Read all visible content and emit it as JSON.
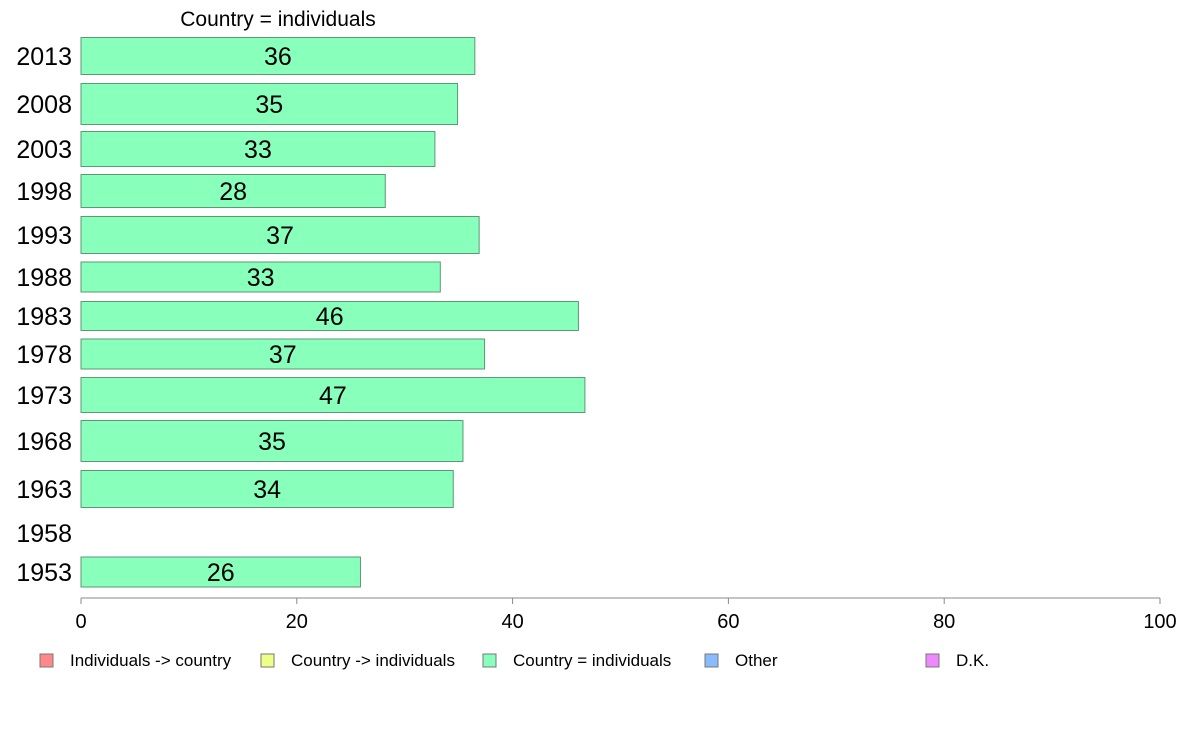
{
  "chart_data": {
    "type": "bar",
    "orientation": "horizontal",
    "title": "Country = individuals",
    "categories": [
      "2013",
      "2008",
      "2003",
      "1998",
      "1993",
      "1988",
      "1983",
      "1978",
      "1973",
      "1968",
      "1963",
      "1958",
      "1953"
    ],
    "values": [
      36.5,
      34.9,
      32.8,
      28.2,
      36.9,
      33.3,
      46.1,
      37.4,
      46.7,
      35.4,
      34.5,
      null,
      25.9
    ],
    "data_labels": [
      "36",
      "35",
      "33",
      "28",
      "37",
      "33",
      "46",
      "37",
      "47",
      "35",
      "34",
      "",
      "26"
    ],
    "xlim": [
      0,
      100
    ],
    "xticks": [
      "0",
      "20",
      "40",
      "60",
      "80",
      "100"
    ],
    "bar_color": "#88ffbb",
    "bar_stroke": "#5a9a74",
    "grid": false,
    "legend_position": "bottom",
    "legend": [
      {
        "label": "Individuals -> country",
        "color": "#ff8888"
      },
      {
        "label": "Country -> individuals",
        "color": "#eeff88"
      },
      {
        "label": "Country = individuals",
        "color": "#88ffbb"
      },
      {
        "label": "Other",
        "color": "#88bbff"
      },
      {
        "label": "D.K.",
        "color": "#ee88ff"
      }
    ]
  }
}
